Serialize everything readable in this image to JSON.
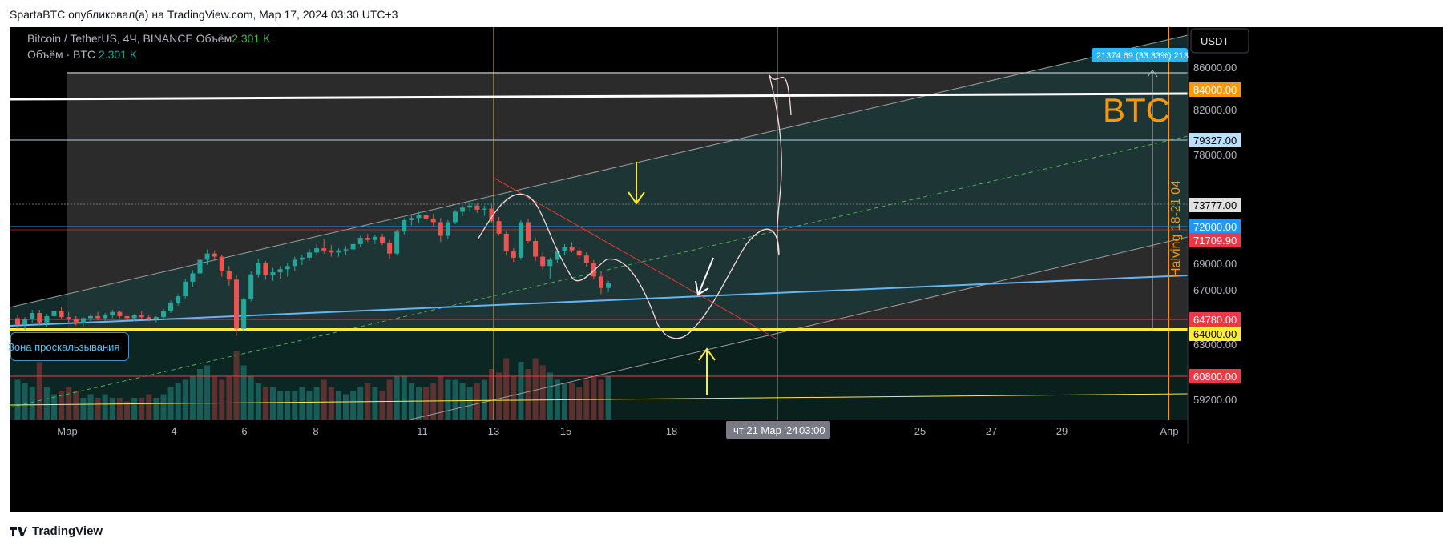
{
  "header": {
    "publisher_line": "SpartaBTC опубликовал(а) на TradingView.com, Мар 17, 2024 03:30 UTC+3"
  },
  "legend": {
    "symbol_line": "Bitcoin / TetherUS, 4Ч, BINANCE",
    "volume_label": "Объём",
    "volume_value": "2.301 K",
    "line2_label": "Объём · BTC",
    "line2_value": "2.301 K"
  },
  "currency_button": "USDT",
  "annotations": {
    "btc_label": "BTC",
    "halving_label": "Halving  18-21 04",
    "slippage_tooltip": "Зона проскальзывания",
    "measure_label": "21374.69 (33.33%) 213",
    "crosshair_time": "чт 21 Мар '24",
    "crosshair_hour": "03:00"
  },
  "footer": {
    "brand": "TradingView"
  },
  "colors": {
    "up": "#26a69a",
    "down": "#ef5350",
    "yellow_level": "#ffeb3b",
    "orange": "#ff9800",
    "blue_line": "#64b5f6"
  },
  "chart_data": {
    "type": "candlestick",
    "symbol": "BTCUSDT",
    "timeframe": "4h",
    "y_range": [
      57000,
      89000
    ],
    "x_ticks": [
      "Мар",
      "4",
      "6",
      "8",
      "11",
      "13",
      "15",
      "18",
      "25",
      "27",
      "29",
      "Апр"
    ],
    "y_ticks": [
      "86000.00",
      "82000.00",
      "78000.00",
      "69000.00",
      "67000.00",
      "63000.00",
      "59200.00"
    ],
    "price_labels": [
      {
        "label": "84000.00",
        "value": 84000,
        "color": "#ff9800"
      },
      {
        "label": "79327.00",
        "value": 79327,
        "color": "#bbdefb"
      },
      {
        "label": "73777.00",
        "value": 73777,
        "color": "#e0e0e0"
      },
      {
        "label": "72000.00",
        "value": 72000,
        "color": "#2196f3"
      },
      {
        "label": "71709.90",
        "value": 71709.9,
        "color": "#f23645"
      },
      {
        "label": "64780.00",
        "value": 64780,
        "color": "#f23645"
      },
      {
        "label": "64000.00",
        "value": 64000,
        "color": "#ffeb3b"
      },
      {
        "label": "60800.00",
        "value": 60800,
        "color": "#f23645"
      }
    ],
    "candles": [
      [
        62500,
        62800,
        61500,
        61900
      ],
      [
        61900,
        62600,
        61400,
        62400
      ],
      [
        62400,
        63300,
        62100,
        63000
      ],
      [
        63000,
        63300,
        61800,
        62100
      ],
      [
        62100,
        62900,
        61700,
        62700
      ],
      [
        62700,
        63500,
        62400,
        63200
      ],
      [
        63200,
        63600,
        62400,
        62600
      ],
      [
        62600,
        63100,
        62000,
        62400
      ],
      [
        62400,
        62700,
        61800,
        62000
      ],
      [
        62000,
        62600,
        61700,
        62500
      ],
      [
        62500,
        62900,
        62100,
        62700
      ],
      [
        62700,
        63100,
        62300,
        62500
      ],
      [
        62500,
        63000,
        62200,
        62800
      ],
      [
        62800,
        63300,
        62500,
        63100
      ],
      [
        63100,
        63200,
        62500,
        62700
      ],
      [
        62700,
        62900,
        62300,
        62500
      ],
      [
        62500,
        62900,
        62200,
        62800
      ],
      [
        62800,
        63200,
        62400,
        62600
      ],
      [
        62600,
        62800,
        62200,
        62400
      ],
      [
        62400,
        62700,
        62100,
        62600
      ],
      [
        62600,
        63400,
        62500,
        63200
      ],
      [
        63200,
        64200,
        63000,
        64000
      ],
      [
        64000,
        64800,
        63700,
        64600
      ],
      [
        64600,
        66300,
        64400,
        66000
      ],
      [
        66000,
        67100,
        65500,
        66800
      ],
      [
        66800,
        68400,
        66500,
        68100
      ],
      [
        68100,
        69100,
        67600,
        68700
      ],
      [
        68700,
        69000,
        68000,
        68400
      ],
      [
        68400,
        68600,
        66500,
        67000
      ],
      [
        67000,
        67500,
        65600,
        66200
      ],
      [
        66200,
        66600,
        60800,
        61500
      ],
      [
        61500,
        64500,
        61200,
        64300
      ],
      [
        64300,
        67000,
        64100,
        66700
      ],
      [
        66700,
        68200,
        66400,
        67800
      ],
      [
        67800,
        68000,
        66200,
        66600
      ],
      [
        66600,
        67300,
        66100,
        66900
      ],
      [
        66900,
        67500,
        66300,
        67200
      ],
      [
        67200,
        67800,
        66500,
        67500
      ],
      [
        67500,
        68400,
        67000,
        68100
      ],
      [
        68100,
        68600,
        67600,
        68300
      ],
      [
        68300,
        69100,
        68000,
        68800
      ],
      [
        68800,
        69600,
        68500,
        69200
      ],
      [
        69200,
        70100,
        68700,
        69000
      ],
      [
        69000,
        69500,
        68400,
        68800
      ],
      [
        68800,
        69200,
        68400,
        69000
      ],
      [
        69000,
        69400,
        68600,
        69100
      ],
      [
        69100,
        69800,
        68900,
        69600
      ],
      [
        69600,
        70400,
        69300,
        70200
      ],
      [
        70200,
        70600,
        69800,
        70000
      ],
      [
        70000,
        70500,
        69600,
        70300
      ],
      [
        70300,
        70600,
        69500,
        69700
      ],
      [
        69700,
        70000,
        68200,
        68700
      ],
      [
        68700,
        71000,
        68500,
        70800
      ],
      [
        70800,
        72100,
        70500,
        71900
      ],
      [
        71900,
        72400,
        71400,
        72100
      ],
      [
        72100,
        72700,
        71600,
        72400
      ],
      [
        72400,
        72800,
        71800,
        72000
      ],
      [
        72000,
        72500,
        71300,
        71700
      ],
      [
        71700,
        72100,
        69800,
        70400
      ],
      [
        70400,
        71900,
        70100,
        71700
      ],
      [
        71700,
        72900,
        71500,
        72700
      ],
      [
        72700,
        73300,
        72300,
        73100
      ],
      [
        73100,
        73700,
        72700,
        73300
      ],
      [
        73300,
        73600,
        72600,
        72900
      ],
      [
        72900,
        73300,
        72300,
        73000
      ],
      [
        73000,
        73400,
        71600,
        71800
      ],
      [
        71800,
        72200,
        70400,
        70600
      ],
      [
        70600,
        70900,
        68500,
        68900
      ],
      [
        68900,
        69200,
        67900,
        68300
      ],
      [
        68300,
        71900,
        68100,
        71700
      ],
      [
        71700,
        72000,
        69700,
        69900
      ],
      [
        69900,
        70200,
        68000,
        68400
      ],
      [
        68400,
        68800,
        67100,
        67500
      ],
      [
        67500,
        68300,
        66300,
        68100
      ],
      [
        68100,
        69200,
        67800,
        68900
      ],
      [
        68900,
        69600,
        68600,
        69300
      ],
      [
        69300,
        69800,
        68800,
        69000
      ],
      [
        69000,
        69300,
        68200,
        68500
      ],
      [
        68500,
        68800,
        67400,
        67800
      ],
      [
        67800,
        68100,
        66200,
        66500
      ],
      [
        66500,
        67000,
        64800,
        65400
      ],
      [
        65400,
        66100,
        65000,
        65900
      ]
    ],
    "volumes_up": [
      true,
      true,
      true,
      false,
      true,
      true,
      false,
      false,
      false,
      true,
      true,
      false,
      true,
      true,
      false,
      false,
      true,
      false,
      false,
      true,
      true,
      true,
      true,
      true,
      true,
      true,
      true,
      false,
      false,
      false,
      false,
      true,
      true,
      true,
      false,
      true,
      true,
      true,
      true,
      true,
      true,
      true,
      false,
      false,
      true,
      true,
      true,
      true,
      false,
      true,
      false,
      false,
      true,
      true,
      true,
      true,
      false,
      false,
      false,
      true,
      true,
      true,
      true,
      false,
      true,
      false,
      false,
      false,
      false,
      true,
      false,
      false,
      false,
      true,
      true,
      true,
      false,
      false,
      false,
      false,
      false,
      true
    ],
    "volumes": [
      0.55,
      0.5,
      0.45,
      0.8,
      0.45,
      0.35,
      0.4,
      0.45,
      0.4,
      0.3,
      0.35,
      0.3,
      0.35,
      0.3,
      0.3,
      0.25,
      0.3,
      0.3,
      0.35,
      0.3,
      0.35,
      0.45,
      0.5,
      0.55,
      0.6,
      0.7,
      0.75,
      0.6,
      0.55,
      0.6,
      0.95,
      0.75,
      0.6,
      0.5,
      0.45,
      0.45,
      0.4,
      0.4,
      0.4,
      0.45,
      0.4,
      0.45,
      0.55,
      0.45,
      0.4,
      0.35,
      0.4,
      0.45,
      0.5,
      0.45,
      0.4,
      0.55,
      0.6,
      0.6,
      0.5,
      0.45,
      0.45,
      0.5,
      0.6,
      0.55,
      0.55,
      0.5,
      0.45,
      0.5,
      0.55,
      0.7,
      0.65,
      0.85,
      0.6,
      0.8,
      0.7,
      0.85,
      0.75,
      0.65,
      0.55,
      0.5,
      0.5,
      0.45,
      0.55,
      0.6,
      0.55,
      0.6
    ],
    "horizontal_levels": [
      84000,
      79327,
      73777,
      72000,
      71709.9,
      64780,
      64000,
      60800
    ]
  }
}
